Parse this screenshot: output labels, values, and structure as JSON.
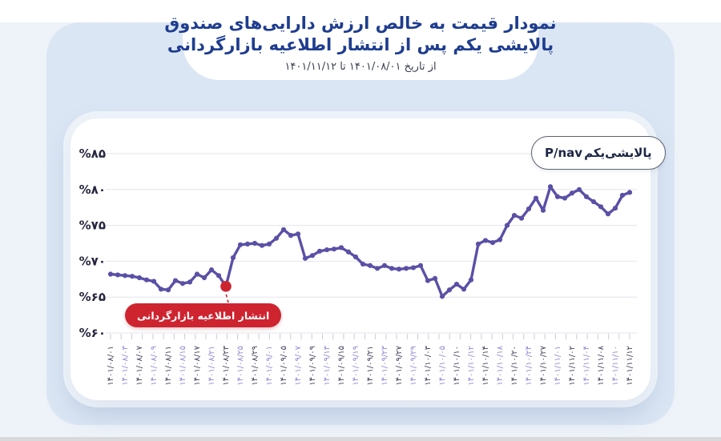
{
  "header": {
    "title_line1": "نمودار قیمت به خالص ارزش دارایی‌های صندوق",
    "title_line2": "پالایشی یکم پس از انتشار اطلاعیه بازارگردانی",
    "subtitle": "از تاریخ ۱۴۰۱/۰۸/۰۱ تا ۱۴۰۱/۱۱/۱۲"
  },
  "legend": {
    "latin": "P/nav",
    "persian": "پالایشی‌یکم"
  },
  "annotation": {
    "label": "انتشار اطلاعیه بازارگردانی",
    "point_index": 16,
    "value": 66.5
  },
  "colors": {
    "title_navy": "#1e3d8f",
    "line_purple": "#5a50a6",
    "accent_red": "#ce2430",
    "grid_gray": "#e4e6ec",
    "tick_gray": "#c6cbd6",
    "xlabel_dark": "#3f3f5a",
    "xlabel_purple": "#8f88d4",
    "ylabel_dark": "#262640",
    "panel_blue": "#dbe6f4"
  },
  "chart_data": {
    "type": "line",
    "title": "P/nav پالایشی یکم",
    "ylabel": "",
    "xlabel": "",
    "ylim": [
      60,
      87
    ],
    "grid": "horizontal",
    "legend_position": "top-right",
    "y_ticks": [
      60,
      65,
      70,
      75,
      80,
      85
    ],
    "y_tick_labels": [
      "%۶۰",
      "%۶۵",
      "%۷۰",
      "%۷۵",
      "%۸۰",
      "%۸۵"
    ],
    "x_tick_labels": [
      "۱۴۰۱/۰۸/۰۱",
      "۱۴۰۱/۰۸/۰۳",
      "۱۴۰۱/۰۸/۰۷",
      "۱۴۰۱/۰۸/۰۹",
      "۱۴۰۱/۰۸/۱۱",
      "۱۴۰۱/۰۸/۱۵",
      "۱۴۰۱/۰۸/۱۷",
      "۱۴۰۱/۰۸/۲۱",
      "۱۴۰۱/۰۸/۲۳",
      "۱۴۰۱/۰۸/۲۵",
      "۱۴۰۱/۰۸/۲۹",
      "۱۴۰۱/۰۹/۰۱",
      "۱۴۰۱/۰۹/۰۵",
      "۱۴۰۱/۰۹/۰۷",
      "۱۴۰۱/۰۹/۰۹",
      "۱۴۰۱/۰۹/۱۳",
      "۱۴۰۱/۰۹/۱۵",
      "۱۴۰۱/۰۹/۱۹",
      "۱۴۰۱/۰۹/۲۱",
      "۱۴۰۱/۰۹/۲۳",
      "۱۴۰۱/۰۹/۲۷",
      "۱۴۰۱/۰۹/۲۹",
      "۱۴۰۱/۱۰/۰۳",
      "۱۴۰۱/۱۰/۰۵",
      "۱۴۰۱/۱۰/۱۰",
      "۱۴۰۱/۱۰/۱۲",
      "۱۴۰۱/۱۰/۱۴",
      "۱۴۰۱/۱۰/۱۸",
      "۱۴۰۱/۱۰/۲۰",
      "۱۴۰۱/۱۰/۲۴",
      "۱۴۰۱/۱۰/۲۷",
      "۱۴۰۱/۱۱/۰۱",
      "۱۴۰۱/۱۱/۰۲",
      "۱۴۰۱/۱۱/۰۴",
      "۱۴۰۱/۱۱/۰۸",
      "۱۴۰۱/۱۱/۱۰",
      "۱۴۰۱/۱۱/۱۲"
    ],
    "labels_every_n_points": 2,
    "series": [
      {
        "name": "P/nav پالایشی یکم",
        "values": [
          68.2,
          68.1,
          68.0,
          67.9,
          67.7,
          67.4,
          67.2,
          66.1,
          66.0,
          67.3,
          66.9,
          67.1,
          68.2,
          67.7,
          68.8,
          68.0,
          66.5,
          70.5,
          72.3,
          72.4,
          72.5,
          72.2,
          72.4,
          73.2,
          74.4,
          73.6,
          73.8,
          70.4,
          70.8,
          71.4,
          71.6,
          71.7,
          71.9,
          71.3,
          70.6,
          69.6,
          69.4,
          69.0,
          69.4,
          69.0,
          68.9,
          69.0,
          69.1,
          69.4,
          67.3,
          67.6,
          65.1,
          66.0,
          66.8,
          66.1,
          67.4,
          72.4,
          72.9,
          72.6,
          73.0,
          75.0,
          76.4,
          76.0,
          77.3,
          78.8,
          77.1,
          80.4,
          79.0,
          78.8,
          79.5,
          80.0,
          79.0,
          78.3,
          77.6,
          76.6,
          77.4,
          79.2,
          79.6
        ]
      }
    ],
    "annotation": {
      "label": "انتشار اطلاعیه بازارگردانی",
      "point_index": 16
    }
  }
}
